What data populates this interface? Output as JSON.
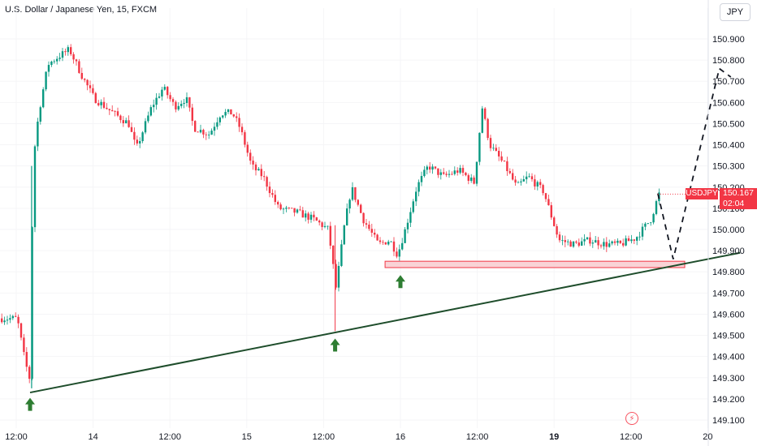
{
  "header": {
    "title": "U.S. Dollar / Japanese Yen, 15, FXCM"
  },
  "toolbar": {
    "currency_label": "JPY"
  },
  "price": {
    "symbol": "USDJPY",
    "last": "150.167",
    "countdown": "02:04"
  },
  "colors": {
    "up": "#089981",
    "down": "#f23645",
    "trend": "#1e4d2b",
    "support_fill": "#f8c8cc",
    "support_border": "#f23645",
    "arrow": "#2e7d32"
  },
  "icons": {
    "replay": "lightning-icon"
  },
  "chart_data": {
    "type": "candlestick",
    "title": "U.S. Dollar / Japanese Yen, 15, FXCM",
    "y_ticks": [
      "150.900",
      "150.800",
      "150.700",
      "150.600",
      "150.500",
      "150.400",
      "150.300",
      "150.200",
      "150.100",
      "150.000",
      "149.900",
      "149.800",
      "149.700",
      "149.600",
      "149.500",
      "149.400",
      "149.300",
      "149.200",
      "149.100"
    ],
    "x_ticks": [
      {
        "label": "12:00",
        "bold": false,
        "t": 0
      },
      {
        "label": "14",
        "bold": false,
        "t": 1
      },
      {
        "label": "12:00",
        "bold": false,
        "t": 2
      },
      {
        "label": "15",
        "bold": false,
        "t": 3
      },
      {
        "label": "12:00",
        "bold": false,
        "t": 4
      },
      {
        "label": "16",
        "bold": false,
        "t": 5
      },
      {
        "label": "12:00",
        "bold": false,
        "t": 6
      },
      {
        "label": "19",
        "bold": true,
        "t": 7
      },
      {
        "label": "12:00",
        "bold": false,
        "t": 8
      },
      {
        "label": "20",
        "bold": false,
        "t": 9
      }
    ],
    "ylim": [
      149.07,
      150.985
    ],
    "path": [
      [
        0.0,
        149.58
      ],
      [
        0.1,
        149.38
      ],
      [
        0.18,
        149.27
      ],
      [
        0.2,
        150.3
      ],
      [
        0.28,
        150.55
      ],
      [
        0.4,
        150.78
      ],
      [
        0.55,
        150.82
      ],
      [
        0.68,
        150.85
      ],
      [
        0.85,
        150.72
      ],
      [
        1.0,
        150.62
      ],
      [
        1.25,
        150.55
      ],
      [
        1.45,
        150.5
      ],
      [
        1.55,
        150.38
      ],
      [
        1.75,
        150.58
      ],
      [
        1.9,
        150.67
      ],
      [
        2.05,
        150.58
      ],
      [
        2.2,
        150.62
      ],
      [
        2.3,
        150.48
      ],
      [
        2.5,
        150.45
      ],
      [
        2.65,
        150.55
      ],
      [
        2.8,
        150.55
      ],
      [
        2.9,
        150.48
      ],
      [
        3.05,
        150.3
      ],
      [
        3.2,
        150.25
      ],
      [
        3.4,
        150.1
      ],
      [
        3.65,
        150.08
      ],
      [
        3.85,
        150.05
      ],
      [
        4.05,
        150.0
      ],
      [
        4.15,
        149.72
      ],
      [
        4.25,
        150.0
      ],
      [
        4.35,
        150.2
      ],
      [
        4.5,
        150.05
      ],
      [
        4.7,
        149.93
      ],
      [
        4.85,
        149.95
      ],
      [
        4.95,
        149.88
      ],
      [
        5.05,
        150.0
      ],
      [
        5.2,
        150.2
      ],
      [
        5.35,
        150.3
      ],
      [
        5.55,
        150.25
      ],
      [
        5.75,
        150.28
      ],
      [
        5.95,
        150.22
      ],
      [
        6.05,
        150.58
      ],
      [
        6.15,
        150.4
      ],
      [
        6.35,
        150.3
      ],
      [
        6.5,
        150.2
      ],
      [
        6.65,
        150.25
      ],
      [
        6.85,
        150.18
      ],
      [
        7.05,
        149.95
      ],
      [
        7.25,
        149.93
      ],
      [
        7.45,
        149.95
      ],
      [
        7.65,
        149.93
      ],
      [
        7.85,
        149.93
      ],
      [
        8.05,
        149.96
      ],
      [
        8.25,
        150.05
      ],
      [
        8.35,
        150.167
      ]
    ],
    "trendline": {
      "from": [
        0.18,
        149.23
      ],
      "to": [
        9.42,
        149.89
      ]
    },
    "support_zone": {
      "x0": 4.8,
      "x1": 8.7,
      "y0": 149.82,
      "y1": 149.85
    },
    "projection": [
      [
        8.35,
        150.17
      ],
      [
        8.55,
        149.86
      ],
      [
        9.15,
        150.76
      ],
      [
        9.3,
        150.72
      ]
    ],
    "arrows": [
      [
        0.18,
        149.22
      ],
      [
        4.15,
        149.5
      ],
      [
        5.0,
        149.8
      ]
    ]
  }
}
